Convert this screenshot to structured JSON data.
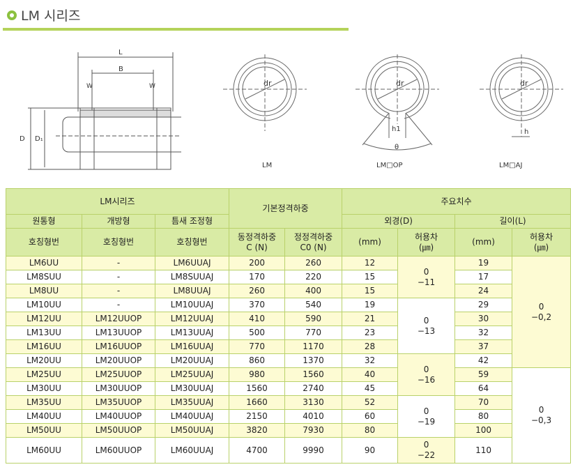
{
  "header": {
    "title": "LM 시리즈"
  },
  "figures": {
    "side_labels": {
      "L": "L",
      "B": "B",
      "W": "W",
      "D": "D",
      "D1": "D₁"
    },
    "dr": "dr",
    "h1": "h1",
    "theta": "θ",
    "h": "h",
    "captions": [
      "LM",
      "LM□OP",
      "LM□AJ"
    ]
  },
  "colors": {
    "accent": "#8cc13f",
    "header_bg": "#d9eba5",
    "row_yellow": "#fdfbd3"
  },
  "table": {
    "h_series": "LM시리즈",
    "h_load": "기본정격하중",
    "h_dims": "주요치수",
    "h_round": "원통형",
    "h_open": "개방형",
    "h_adj": "틈새 조정형",
    "h_od": "외경(D)",
    "h_len": "길이(L)",
    "h_code": "호칭형번",
    "h_c": "동정격하중\nC (N)",
    "h_c0": "정정격하중\nC0 (N)",
    "h_mm": "(mm)",
    "h_tol": "허용차\n(㎛)",
    "rows": [
      [
        "LM6UU",
        "-",
        "LM6UUAJ",
        "200",
        "260",
        "12",
        "19"
      ],
      [
        "LM8SUU",
        "-",
        "LM8SUUAJ",
        "170",
        "220",
        "15",
        "17"
      ],
      [
        "LM8UU",
        "-",
        "LM8UUAJ",
        "260",
        "400",
        "15",
        "24"
      ],
      [
        "LM10UU",
        "-",
        "LM10UUAJ",
        "370",
        "540",
        "19",
        "29"
      ],
      [
        "LM12UU",
        "LM12UUOP",
        "LM12UUAJ",
        "410",
        "590",
        "21",
        "30"
      ],
      [
        "LM13UU",
        "LM13UUOP",
        "LM13UUAJ",
        "500",
        "770",
        "23",
        "32"
      ],
      [
        "LM16UU",
        "LM16UUOP",
        "LM16UUAJ",
        "770",
        "1170",
        "28",
        "37"
      ],
      [
        "LM20UU",
        "LM20UUOP",
        "LM20UUAJ",
        "860",
        "1370",
        "32",
        "42"
      ],
      [
        "LM25UU",
        "LM25UUOP",
        "LM25UUAJ",
        "980",
        "1560",
        "40",
        "59"
      ],
      [
        "LM30UU",
        "LM30UUOP",
        "LM30UUAJ",
        "1560",
        "2740",
        "45",
        "64"
      ],
      [
        "LM35UU",
        "LM35UUOP",
        "LM35UUAJ",
        "1660",
        "3130",
        "52",
        "70"
      ],
      [
        "LM40UU",
        "LM40UUOP",
        "LM40UUAJ",
        "2150",
        "4010",
        "60",
        "80"
      ],
      [
        "LM50UU",
        "LM50UUOP",
        "LM50UUAJ",
        "3820",
        "7930",
        "80",
        "100"
      ],
      [
        "LM60UU",
        "LM60UUOP",
        "LM60UUAJ",
        "4700",
        "9990",
        "90",
        "110"
      ]
    ],
    "d_tol": [
      {
        "start": 0,
        "span": 3,
        "text": "0\n−11"
      },
      {
        "start": 3,
        "span": 4,
        "text": "0\n−13"
      },
      {
        "start": 7,
        "span": 3,
        "text": "0\n−16"
      },
      {
        "start": 10,
        "span": 3,
        "text": "0\n−19"
      },
      {
        "start": 13,
        "span": 1,
        "text": "0\n−22"
      }
    ],
    "l_tol": [
      {
        "start": 0,
        "span": 8,
        "text": "0\n−0,2"
      },
      {
        "start": 8,
        "span": 6,
        "text": "0\n−0,3"
      }
    ]
  }
}
